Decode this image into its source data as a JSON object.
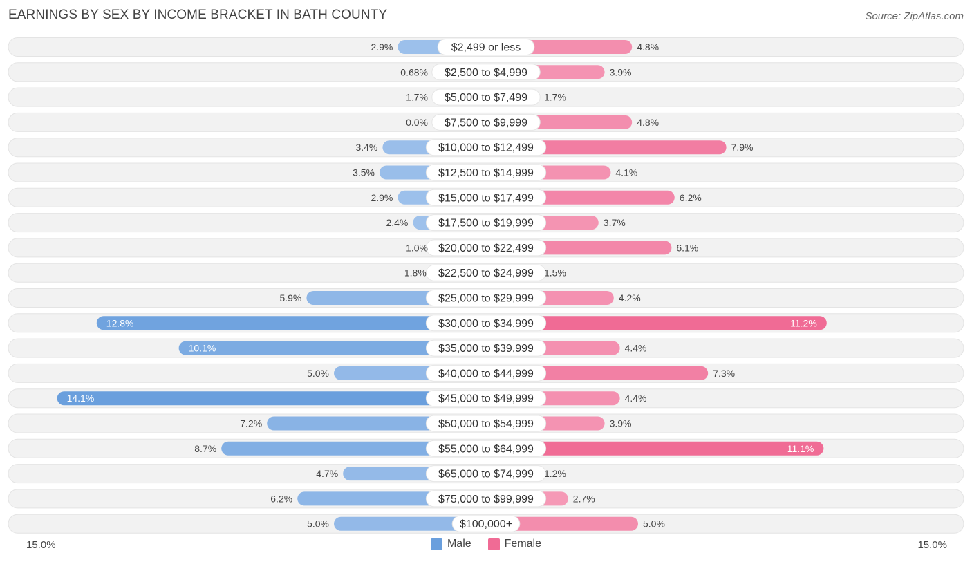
{
  "header": {
    "title": "EARNINGS BY SEX BY INCOME BRACKET IN BATH COUNTY",
    "source": "Source: ZipAtlas.com"
  },
  "axis": {
    "left_label": "15.0%",
    "right_label": "15.0%"
  },
  "legend": {
    "male_label": "Male",
    "female_label": "Female"
  },
  "colors": {
    "male": "#6a9fdd",
    "male_light": "#a9c8ee",
    "female": "#f06b95",
    "female_light": "#f6a8c1",
    "row_bg": "#f2f2f2"
  },
  "chart_data": {
    "type": "bar",
    "orientation": "horizontal-diverging",
    "title": "EARNINGS BY SEX BY INCOME BRACKET IN BATH COUNTY",
    "xlim": [
      -15,
      15
    ],
    "categories": [
      "$2,499 or less",
      "$2,500 to $4,999",
      "$5,000 to $7,499",
      "$7,500 to $9,999",
      "$10,000 to $12,499",
      "$12,500 to $14,999",
      "$15,000 to $17,499",
      "$17,500 to $19,999",
      "$20,000 to $22,499",
      "$22,500 to $24,999",
      "$25,000 to $29,999",
      "$30,000 to $34,999",
      "$35,000 to $39,999",
      "$40,000 to $44,999",
      "$45,000 to $49,999",
      "$50,000 to $54,999",
      "$55,000 to $64,999",
      "$65,000 to $74,999",
      "$75,000 to $99,999",
      "$100,000+"
    ],
    "series": [
      {
        "name": "Male",
        "values": [
          2.9,
          0.68,
          1.7,
          0.0,
          3.4,
          3.5,
          2.9,
          2.4,
          1.0,
          1.8,
          5.9,
          12.8,
          10.1,
          5.0,
          14.1,
          7.2,
          8.7,
          4.7,
          6.2,
          5.0
        ],
        "labels": [
          "2.9%",
          "0.68%",
          "1.7%",
          "0.0%",
          "3.4%",
          "3.5%",
          "2.9%",
          "2.4%",
          "1.0%",
          "1.8%",
          "5.9%",
          "12.8%",
          "10.1%",
          "5.0%",
          "14.1%",
          "7.2%",
          "8.7%",
          "4.7%",
          "6.2%",
          "5.0%"
        ]
      },
      {
        "name": "Female",
        "values": [
          4.8,
          3.9,
          1.7,
          4.8,
          7.9,
          4.1,
          6.2,
          3.7,
          6.1,
          1.5,
          4.2,
          11.2,
          4.4,
          7.3,
          4.4,
          3.9,
          11.1,
          1.2,
          2.7,
          5.0
        ],
        "labels": [
          "4.8%",
          "3.9%",
          "1.7%",
          "4.8%",
          "7.9%",
          "4.1%",
          "6.2%",
          "3.7%",
          "6.1%",
          "1.5%",
          "4.2%",
          "11.2%",
          "4.4%",
          "7.3%",
          "4.4%",
          "3.9%",
          "11.1%",
          "1.2%",
          "2.7%",
          "5.0%"
        ]
      }
    ]
  }
}
